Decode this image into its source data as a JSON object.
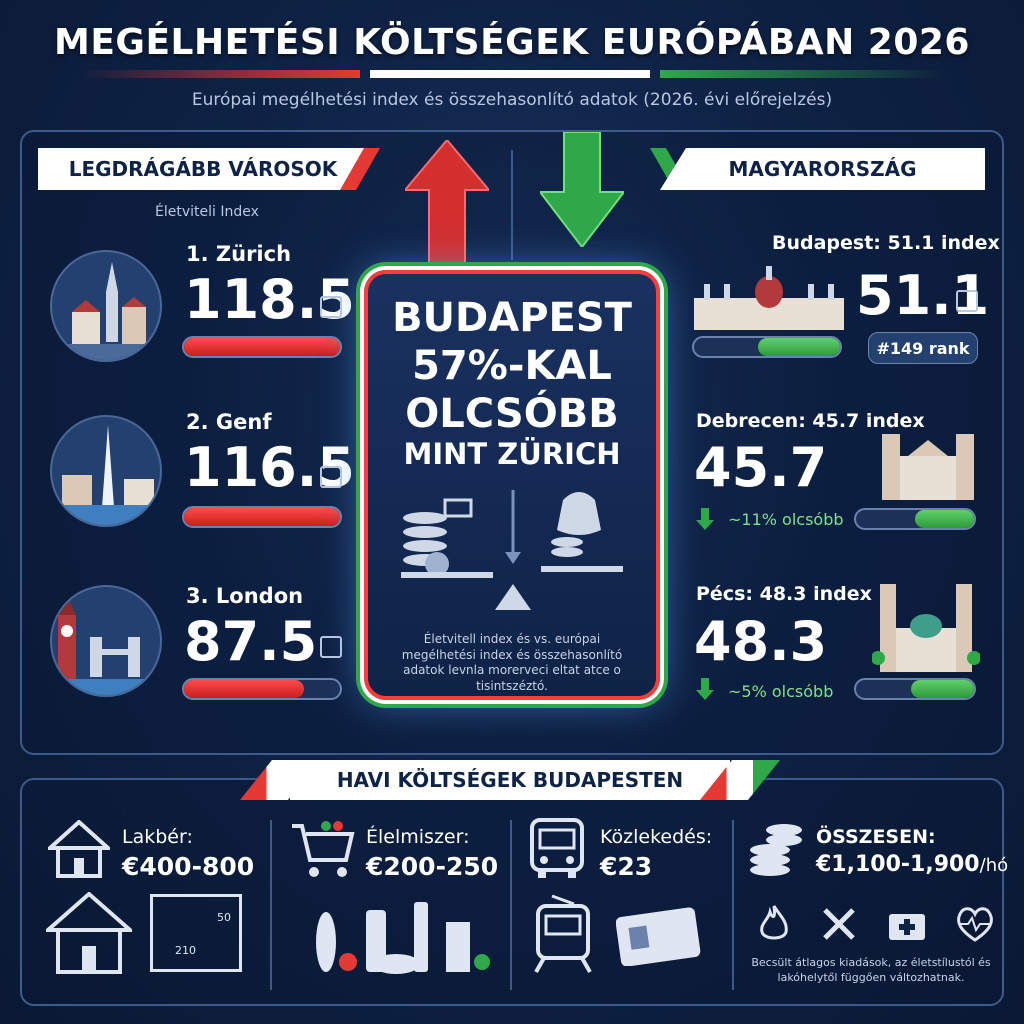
{
  "header": {
    "title": "MEGÉLHETÉSI KÖLTSÉGEK EURÓPÁBAN 2026",
    "subtitle": "Európai megélhetési index és összehasonlító adatok (2026. évi előrejelzés)"
  },
  "left_panel": {
    "heading": "LEGDRÁGÁBB VÁROSOK",
    "index_label": "Életviteli Index",
    "cities": [
      {
        "name": "1. Zürich",
        "value": "118.5",
        "bar_fraction": 1.0,
        "icon": "zurich-skyline-icon"
      },
      {
        "name": "2. Genf",
        "value": "116.5",
        "bar_fraction": 1.0,
        "icon": "geneva-fountain-icon"
      },
      {
        "name": "3. London",
        "value": "87.5",
        "bar_fraction": 0.77,
        "icon": "london-bigben-icon"
      }
    ]
  },
  "center_card": {
    "line1": "BUDAPEST",
    "line2": "57%-KAL",
    "line3": "OLCSÓBB",
    "line4": "MINT ZÜRICH",
    "footnote": "Életvitell index és vs. európai megélhetési index és összehasonlító adatok levnla morerveci eltat atce o tisintszéztó."
  },
  "right_panel": {
    "heading": "MAGYARORSZÁG",
    "cities": [
      {
        "label": "Budapest: 51.1 index",
        "value": "51.1",
        "rank": "#149 rank",
        "bar_fraction": 0.56,
        "icon": "parliament-icon"
      },
      {
        "label": "Debrecen: 45.7 index",
        "value": "45.7",
        "diff": "~11% olcsóbb",
        "bar_fraction": 0.5,
        "icon": "debrecen-church-icon"
      },
      {
        "label": "Pécs: 48.3 index",
        "value": "48.3",
        "diff": "~5% olcsóbb",
        "bar_fraction": 0.53,
        "icon": "pecs-cathedral-icon"
      }
    ]
  },
  "costs": {
    "heading": "HAVI KÖLTSÉGEK BUDAPESTEN",
    "items": [
      {
        "label": "Lakbér:",
        "value": "€400-800",
        "icon": "house-icon"
      },
      {
        "label": "Élelmiszer:",
        "value": "€200-250",
        "icon": "shopping-cart-icon"
      },
      {
        "label": "Közlekedés:",
        "value": "€23",
        "icon": "bus-icon"
      }
    ],
    "total_label": "ÖSSZESEN:",
    "total_value": "€1,100-1,900",
    "total_unit": "/hó",
    "note": "Becsült átlagos kiadások, az életstílustól és lakóhelytől függően változhatnak.",
    "floorplan_labels": [
      "50",
      "210"
    ]
  },
  "colors": {
    "red": "#e53935",
    "white": "#ffffff",
    "green": "#2fa84a",
    "background": "#0f2347"
  }
}
